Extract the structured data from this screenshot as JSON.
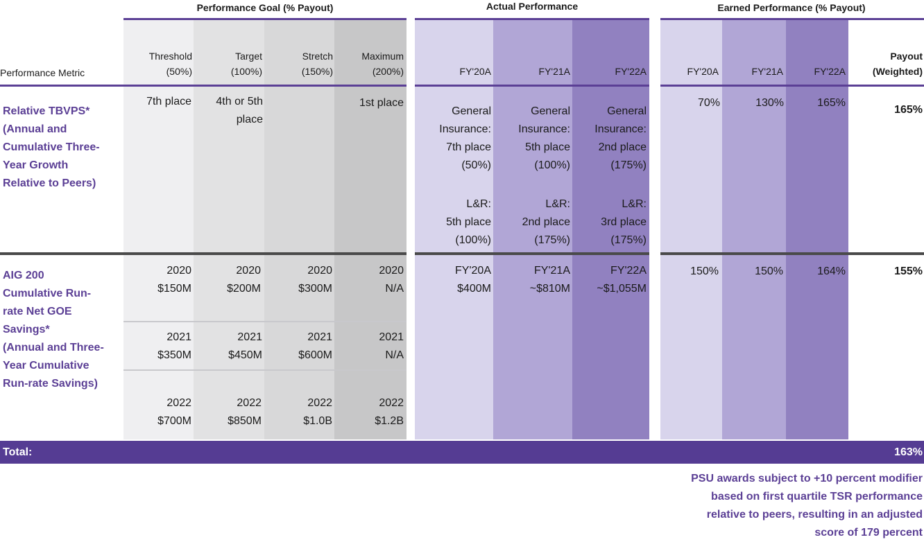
{
  "headers": {
    "performance_goal": "Performance Goal (% Payout)",
    "actual_performance": "Actual Performance",
    "earned_performance": "Earned Performance (% Payout)",
    "performance_metric": "Performance Metric",
    "goal_columns": [
      {
        "name": "Threshold",
        "pct": "(50%)"
      },
      {
        "name": "Target",
        "pct": "(100%)"
      },
      {
        "name": "Stretch",
        "pct": "(150%)"
      },
      {
        "name": "Maximum",
        "pct": "(200%)"
      }
    ],
    "actual_columns": [
      "FY'20A",
      "FY'21A",
      "FY'22A"
    ],
    "earned_columns": [
      "FY'20A",
      "FY'21A",
      "FY'22A"
    ],
    "payout": {
      "line1": "Payout",
      "line2": "(Weighted)"
    }
  },
  "row1": {
    "metric": [
      "Relative TBVPS*",
      "(Annual and",
      "Cumulative Three-",
      "Year Growth",
      "Relative to Peers)"
    ],
    "goals": {
      "threshold": [
        "7th place"
      ],
      "target": [
        "4th or 5th",
        "place"
      ],
      "stretch": [],
      "maximum": [
        "1st place"
      ]
    },
    "actual": [
      {
        "gi": [
          "General",
          "Insurance:",
          "7th place",
          "(50%)"
        ],
        "lr": [
          "L&R:",
          "5th place",
          "(100%)"
        ]
      },
      {
        "gi": [
          "General",
          "Insurance:",
          "5th place",
          "(100%)"
        ],
        "lr": [
          "L&R:",
          "2nd place",
          "(175%)"
        ]
      },
      {
        "gi": [
          "General",
          "Insurance:",
          "2nd place",
          "(175%)"
        ],
        "lr": [
          "L&R:",
          "3rd place",
          "(175%)"
        ]
      }
    ],
    "earned": [
      "70%",
      "130%",
      "165%"
    ],
    "payout": "165%"
  },
  "row2": {
    "metric": [
      "AIG  200",
      "Cumulative  Run-",
      "rate  Net GOE",
      "Savings*",
      "(Annual and Three-",
      "Year Cumulative",
      "Run-rate Savings)"
    ],
    "goals": [
      {
        "year": "2020",
        "threshold": "$150M",
        "target": "$200M",
        "stretch": "$300M",
        "maximum": "N/A"
      },
      {
        "year": "2021",
        "threshold": "$350M",
        "target": "$450M",
        "stretch": "$600M",
        "maximum": "N/A"
      },
      {
        "year": "2022",
        "threshold": "$700M",
        "target": "$850M",
        "stretch": "$1.0B",
        "maximum": "$1.2B"
      }
    ],
    "actual": [
      {
        "label": "FY'20A",
        "value": "$400M"
      },
      {
        "label": "FY'21A",
        "value": "~$810M"
      },
      {
        "label": "FY'22A",
        "value": "~$1,055M"
      }
    ],
    "earned": [
      "150%",
      "150%",
      "164%"
    ],
    "payout": "155%"
  },
  "total": {
    "label": "Total:",
    "value": "163%"
  },
  "note": [
    "PSU awards subject to +10 percent modifier",
    "based on first quartile TSR performance",
    "relative to peers, resulting in an adjusted",
    "score of 179 percent"
  ],
  "colors": {
    "purple": "#5b3f95",
    "total_bar": "#553c93"
  }
}
